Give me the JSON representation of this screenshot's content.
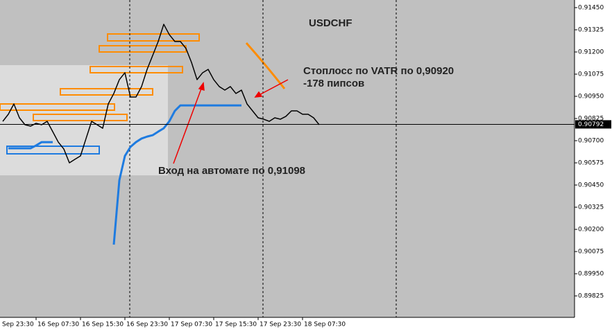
{
  "chart_data": {
    "type": "line",
    "title": "USDCHF",
    "categories": [
      "Sep 23:30",
      null,
      null,
      null,
      null,
      null,
      null,
      null,
      "16 Sep 07:30",
      null,
      null,
      null,
      null,
      null,
      null,
      null,
      "16 Sep 15:30",
      null,
      null,
      null,
      null,
      null,
      null,
      null,
      "16 Sep 23:30",
      null,
      null,
      null,
      null,
      null,
      null,
      null,
      "17 Sep 07:30",
      null,
      null,
      null,
      null,
      null,
      null,
      null,
      "17 Sep 15:30",
      null,
      null,
      null,
      null,
      null,
      null,
      null,
      "17 Sep 23:30",
      null,
      null,
      null,
      null,
      null,
      null,
      null,
      "18 Sep 07:30",
      null,
      null,
      null
    ],
    "series": [
      {
        "name": "USDCHF",
        "color": "#000000",
        "values": [
          null,
          null,
          0.90809,
          0.90849,
          0.90907,
          0.90829,
          0.9079,
          0.90782,
          0.90798,
          0.9079,
          0.90809,
          0.90751,
          0.90692,
          0.90653,
          0.90575,
          0.90595,
          0.90614,
          0.90712,
          0.90809,
          0.9079,
          0.9077,
          0.90907,
          0.90966,
          0.91044,
          0.91083,
          0.90946,
          0.90946,
          0.91005,
          0.91102,
          0.9118,
          0.91259,
          0.91356,
          0.91298,
          0.91259,
          0.91259,
          0.9122,
          0.91141,
          0.91044,
          0.91083,
          0.91102,
          0.91044,
          0.91005,
          0.90985,
          0.91005,
          0.90966,
          0.90985,
          0.90907,
          0.90868,
          0.90829,
          0.90821,
          0.90809,
          0.90829,
          0.90821,
          0.90837,
          0.90868,
          0.90868,
          0.90849,
          0.90849,
          0.90829,
          0.9079
        ]
      },
      {
        "name": "VATR",
        "color": "#1e7be0",
        "values": [
          null,
          null,
          null,
          0.90657,
          0.90657,
          0.90657,
          0.90657,
          0.90657,
          0.90673,
          0.90692,
          0.90692,
          0.90692,
          null,
          null,
          null,
          null,
          null,
          null,
          null,
          null,
          null,
          null,
          0.90114,
          0.90477,
          0.90614,
          0.90665,
          0.90692,
          0.90712,
          0.90723,
          0.90731,
          0.90751,
          0.9077,
          0.90809,
          0.90868,
          0.90899,
          0.90899,
          0.90899,
          0.90899,
          0.90899,
          0.90899,
          0.90899,
          0.90899,
          0.90899,
          0.90899,
          0.90899,
          0.90899,
          null,
          null,
          null,
          null,
          null,
          null,
          null,
          null,
          null,
          null,
          null,
          null,
          null,
          null
        ]
      }
    ],
    "ylim": [
      0.89704,
      0.91493
    ],
    "yticks": [
      {
        "value": 0.9145,
        "label": "0.91450"
      },
      {
        "value": 0.91325,
        "label": "0.91325"
      },
      {
        "value": 0.912,
        "label": "0.91200"
      },
      {
        "value": 0.91075,
        "label": "0.91075"
      },
      {
        "value": 0.9095,
        "label": "0.90950"
      },
      {
        "value": 0.90825,
        "label": "0.90825"
      },
      {
        "value": 0.907,
        "label": "0.90700"
      },
      {
        "value": 0.90575,
        "label": "0.90575"
      },
      {
        "value": 0.9045,
        "label": "0.90450"
      },
      {
        "value": 0.90325,
        "label": "0.90325"
      },
      {
        "value": 0.902,
        "label": "0.90200"
      },
      {
        "value": 0.90075,
        "label": "0.90075"
      },
      {
        "value": 0.8995,
        "label": "0.89950"
      },
      {
        "value": 0.89825,
        "label": "0.89825"
      }
    ],
    "current_price": {
      "value": 0.90792,
      "label": "0.90792"
    },
    "annotations": [
      "Стоплосс по VATR по 0,90920",
      "-178 пипсов",
      "Вход на автомате по 0,91098"
    ]
  }
}
